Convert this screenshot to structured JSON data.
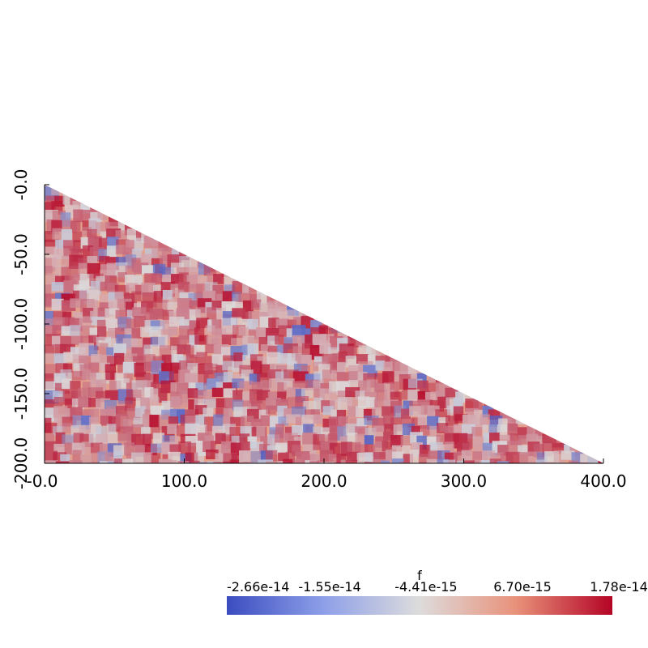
{
  "chart_data": {
    "type": "heatmap",
    "shape": "right-triangle",
    "xlim": [
      0,
      400
    ],
    "ylim": [
      -200,
      0
    ],
    "x_ticks": [
      0,
      100,
      200,
      300,
      400
    ],
    "y_ticks": [
      0,
      -50,
      -100,
      -150,
      -200
    ],
    "x_tick_labels": [
      "-0.0",
      "100.0",
      "200.0",
      "300.0",
      "400.0"
    ],
    "y_tick_labels": [
      "-0.0",
      "-50.0",
      "-100.0",
      "-150.0",
      "-200.0"
    ],
    "colorbar": {
      "title": "f",
      "min": -2.66e-14,
      "max": 1.78e-14,
      "tick_values": [
        -2.66e-14,
        -1.55e-14,
        -4.41e-15,
        6.7e-15,
        1.78e-14
      ],
      "tick_labels": [
        "-2.66e-14",
        "-1.55e-14",
        "-4.41e-15",
        "6.70e-15",
        "1.78e-14"
      ],
      "colormap": "cool-to-warm",
      "color_low": "#3b4cc0",
      "color_mid": "#dddddd",
      "color_high": "#b40426"
    }
  }
}
